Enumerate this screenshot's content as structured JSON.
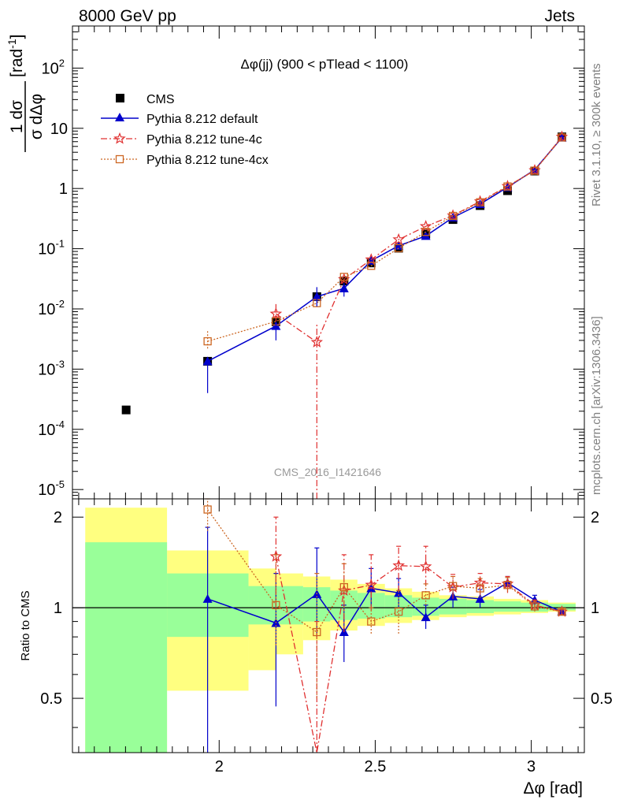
{
  "header": {
    "left": "8000 GeV pp",
    "right": "Jets"
  },
  "side_labels": {
    "rivet": "Rivet 3.1.10, ≥ 300k events",
    "mcplots": "mcplots.cern.ch [arXiv:1306.3436]"
  },
  "chart_data": {
    "type": "scatter",
    "title": "Δφ(jj) (900 < pTlead <  1100)",
    "watermark": "CMS_2016_I1421646",
    "xlabel": "Δφ [rad]",
    "ylabel": "1/σ dσ/dΔφ [rad⁻¹]",
    "ylabel_parts": {
      "frac_top": "1 dσ",
      "frac_bottom": "σ dΔφ",
      "unit": "[rad",
      "unit_sup": "-1",
      "unit_close": "]"
    },
    "ratio_ylabel": "Ratio to CMS",
    "xlim": [
      1.53,
      3.17
    ],
    "ylim": [
      7e-06,
      500
    ],
    "yscale": "log",
    "ratio_ylim": [
      0.33,
      2.3
    ],
    "ratio_yscale": "log",
    "x_ticks": [
      "2",
      "2.5",
      "3"
    ],
    "y_ticks": [
      {
        "base": "10",
        "exp": "-5",
        "value": 1e-05
      },
      {
        "base": "10",
        "exp": "-4",
        "value": 0.0001
      },
      {
        "base": "10",
        "exp": "-3",
        "value": 0.001
      },
      {
        "base": "10",
        "exp": "-2",
        "value": 0.01
      },
      {
        "base": "10",
        "exp": "-1",
        "value": 0.1
      },
      {
        "base": "1",
        "exp": "",
        "value": 1
      },
      {
        "base": "10",
        "exp": "",
        "value": 10
      },
      {
        "base": "10",
        "exp": "2",
        "value": 100
      }
    ],
    "ratio_ticks": [
      "0.5",
      "1",
      "2"
    ],
    "legend_position": "top-left",
    "bands": {
      "edges": [
        1.571,
        1.833,
        2.094,
        2.182,
        2.269,
        2.356,
        2.443,
        2.531,
        2.618,
        2.705,
        2.793,
        2.88,
        2.967,
        3.054,
        3.142
      ],
      "green": [
        [
          0.33,
          1.65
        ],
        [
          0.8,
          1.3
        ],
        [
          0.88,
          1.18
        ],
        [
          0.88,
          1.18
        ],
        [
          0.9,
          1.17
        ],
        [
          0.91,
          1.14
        ],
        [
          0.92,
          1.12
        ],
        [
          0.93,
          1.1
        ],
        [
          0.94,
          1.08
        ],
        [
          0.95,
          1.07
        ],
        [
          0.96,
          1.06
        ],
        [
          0.97,
          1.05
        ],
        [
          0.97,
          1.04
        ],
        [
          0.98,
          1.03
        ]
      ],
      "yellow": [
        [
          0.33,
          2.15
        ],
        [
          0.53,
          1.55
        ],
        [
          0.62,
          1.35
        ],
        [
          0.7,
          1.3
        ],
        [
          0.78,
          1.27
        ],
        [
          0.84,
          1.24
        ],
        [
          0.87,
          1.2
        ],
        [
          0.89,
          1.16
        ],
        [
          0.91,
          1.13
        ],
        [
          0.93,
          1.1
        ],
        [
          0.94,
          1.09
        ],
        [
          0.95,
          1.07
        ],
        [
          0.96,
          1.06
        ],
        [
          0.97,
          1.04
        ]
      ]
    },
    "series": [
      {
        "name": "CMS",
        "color": "#000000",
        "x": [
          1.702,
          1.963,
          2.182,
          2.313,
          2.4,
          2.487,
          2.575,
          2.662,
          2.749,
          2.836,
          2.924,
          3.011,
          3.098
        ],
        "y": [
          0.00021,
          0.00135,
          0.0061,
          0.016,
          0.029,
          0.058,
          0.102,
          0.175,
          0.305,
          0.52,
          0.92,
          1.95,
          7.2
        ]
      },
      {
        "name": "Pythia 8.212 default",
        "color": "#0000cc",
        "x": [
          1.963,
          2.182,
          2.313,
          2.4,
          2.487,
          2.575,
          2.662,
          2.749,
          2.836,
          2.924,
          3.011,
          3.098
        ],
        "y": [
          0.00135,
          0.0052,
          0.016,
          0.022,
          0.063,
          0.112,
          0.163,
          0.33,
          0.55,
          1.05,
          2.05,
          7.0
        ],
        "ratio": [
          1.07,
          0.89,
          1.11,
          0.83,
          1.16,
          1.12,
          0.93,
          1.09,
          1.07,
          1.21,
          1.06,
          0.97
        ],
        "ratio_err": [
          [
            0.3,
            1.85
          ],
          [
            0.47,
            1.3
          ],
          [
            0.8,
            1.58
          ],
          [
            0.66,
            1.02
          ],
          [
            1.01,
            1.35
          ],
          [
            1.0,
            1.25
          ],
          [
            0.85,
            1.02
          ],
          [
            1.0,
            1.17
          ],
          [
            1.0,
            1.15
          ],
          [
            1.15,
            1.27
          ],
          [
            1.02,
            1.1
          ],
          [
            0.95,
            0.99
          ]
        ]
      },
      {
        "name": "Pythia 8.212 tune-4c",
        "color": "#e03030",
        "x": [
          2.182,
          2.313,
          2.4,
          2.487,
          2.575,
          2.662,
          2.749,
          2.836,
          2.924,
          3.011,
          3.098
        ],
        "y": [
          0.0083,
          0.0028,
          0.031,
          0.066,
          0.142,
          0.235,
          0.355,
          0.61,
          1.09,
          2.0,
          7.2
        ],
        "ratio": [
          1.48,
          0.3,
          1.14,
          1.19,
          1.38,
          1.37,
          1.17,
          1.21,
          1.2,
          1.02,
          0.97
        ],
        "ratio_err": [
          [
            1.0,
            2.0
          ],
          [
            0.2,
            0.9
          ],
          [
            0.83,
            1.5
          ],
          [
            0.98,
            1.5
          ],
          [
            1.13,
            1.6
          ],
          [
            1.18,
            1.6
          ],
          [
            1.07,
            1.29
          ],
          [
            1.1,
            1.3
          ],
          [
            1.12,
            1.27
          ],
          [
            0.98,
            1.06
          ],
          [
            0.95,
            0.99
          ]
        ]
      },
      {
        "name": "Pythia 8.212 tune-4cx",
        "color": "#cc6622",
        "x": [
          1.963,
          2.182,
          2.313,
          2.4,
          2.487,
          2.575,
          2.662,
          2.749,
          2.836,
          2.924,
          3.011,
          3.098
        ],
        "y": [
          0.0029,
          0.0062,
          0.0125,
          0.034,
          0.052,
          0.102,
          0.19,
          0.35,
          0.59,
          1.08,
          1.98,
          7.05
        ],
        "ratio": [
          2.12,
          1.02,
          0.83,
          1.17,
          0.9,
          0.97,
          1.1,
          1.18,
          1.16,
          1.19,
          1.01,
          0.97
        ],
        "ratio_err": [
          [
            1.8,
            2.5
          ],
          [
            0.75,
            1.5
          ],
          [
            0.5,
            1.3
          ],
          [
            0.95,
            1.4
          ],
          [
            0.82,
            1.0
          ],
          [
            0.82,
            1.14
          ],
          [
            1.02,
            1.2
          ],
          [
            1.1,
            1.27
          ],
          [
            1.08,
            1.25
          ],
          [
            1.13,
            1.26
          ],
          [
            0.97,
            1.05
          ],
          [
            0.95,
            0.99
          ]
        ]
      }
    ]
  }
}
